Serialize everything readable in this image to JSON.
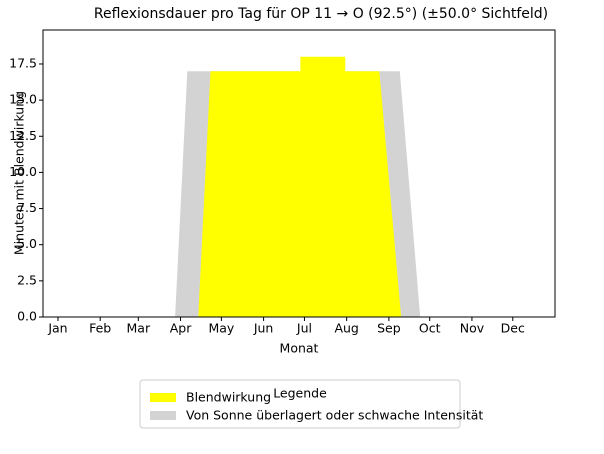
{
  "chart_data": {
    "type": "area",
    "title": "Reflexionsdauer pro Tag für OP 11 → O (92.5°) (±50.0° Sichtfeld)",
    "xlabel": "Monat",
    "ylabel": "Minuten mit Blendwirkung",
    "xlim": [
      -11,
      365
    ],
    "ylim": [
      0,
      19.85
    ],
    "xticks": [
      {
        "value": 0,
        "label": "Jan"
      },
      {
        "value": 31,
        "label": "Feb"
      },
      {
        "value": 59,
        "label": "Mar"
      },
      {
        "value": 90,
        "label": "Apr"
      },
      {
        "value": 120,
        "label": "May"
      },
      {
        "value": 151,
        "label": "Jun"
      },
      {
        "value": 181,
        "label": "Jul"
      },
      {
        "value": 212,
        "label": "Aug"
      },
      {
        "value": 243,
        "label": "Sep"
      },
      {
        "value": 273,
        "label": "Oct"
      },
      {
        "value": 304,
        "label": "Nov"
      },
      {
        "value": 334,
        "label": "Dec"
      }
    ],
    "yticks": [
      {
        "value": 0,
        "label": "0.0"
      },
      {
        "value": 2.5,
        "label": "2.5"
      },
      {
        "value": 5,
        "label": "5.0"
      },
      {
        "value": 7.5,
        "label": "7.5"
      },
      {
        "value": 10,
        "label": "10.0"
      },
      {
        "value": 12.5,
        "label": "12.5"
      },
      {
        "value": 15,
        "label": "15.0"
      },
      {
        "value": 17.5,
        "label": "17.5"
      }
    ],
    "legend_title": "Legende",
    "series": [
      {
        "name": "Von Sonne überlagert oder schwache Intensität",
        "color": "#d3d3d3",
        "x": [
          86,
          95,
          251,
          266
        ],
        "values": [
          0,
          17,
          17,
          0
        ]
      },
      {
        "name": "Blendwirkung",
        "color": "#ffff00",
        "x": [
          103,
          112,
          178,
          178,
          211,
          211,
          236,
          252
        ],
        "values": [
          0,
          17,
          17,
          18,
          18,
          17,
          17,
          0
        ]
      }
    ],
    "legend_order": [
      1,
      0
    ]
  }
}
